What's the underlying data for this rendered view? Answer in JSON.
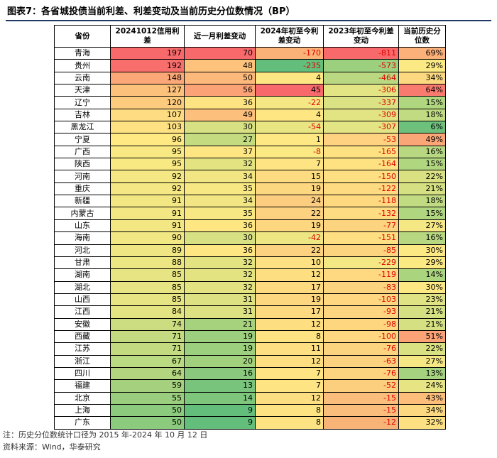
{
  "title": "图表7：各省城投债当前利差、利差变动及当前历史分位数情况（BP）",
  "table": {
    "headers": [
      "省份",
      "20241012信用利差",
      "近一月利差变动",
      "2024年初至今利差变动",
      "2023年初至今利差变动",
      "当前历史分位数"
    ],
    "rows": [
      {
        "province": "青海",
        "spread": "197",
        "m1": "70",
        "ytd2024": "-170",
        "ytd2023": "-811",
        "pct": "69%",
        "colors": [
          "#f8696b",
          "#f8696b",
          "#fbb279",
          "#f8696b",
          "#fcb07a"
        ]
      },
      {
        "province": "贵州",
        "spread": "192",
        "m1": "48",
        "ytd2024": "-235",
        "ytd2023": "-573",
        "pct": "29%",
        "colors": [
          "#f86e6c",
          "#fdc37d",
          "#63be7b",
          "#9cd07e",
          "#fbe983"
        ]
      },
      {
        "province": "云南",
        "spread": "148",
        "m1": "50",
        "ytd2024": "4",
        "ytd2023": "-464",
        "pct": "34%",
        "colors": [
          "#fba777",
          "#fcb97b",
          "#fee783",
          "#b9d881",
          "#fcd880"
        ]
      },
      {
        "province": "天津",
        "spread": "127",
        "m1": "56",
        "ytd2024": "45",
        "ytd2023": "-306",
        "pct": "64%",
        "colors": [
          "#fcc27c",
          "#fba276",
          "#f8696b",
          "#e3e483",
          "#f97a6e"
        ]
      },
      {
        "province": "辽宁",
        "spread": "120",
        "m1": "36",
        "ytd2024": "-22",
        "ytd2023": "-337",
        "pct": "15%",
        "colors": [
          "#fdcb7e",
          "#fee382",
          "#f5e884",
          "#dbe283",
          "#b0d67f"
        ]
      },
      {
        "province": "吉林",
        "spread": "107",
        "m1": "49",
        "ytd2024": "4",
        "ytd2023": "-309",
        "pct": "18%",
        "colors": [
          "#fedc81",
          "#fdbf7c",
          "#fee783",
          "#e2e483",
          "#c0db81"
        ]
      },
      {
        "province": "黑龙江",
        "spread": "103",
        "m1": "30",
        "ytd2024": "-54",
        "ytd2023": "-307",
        "pct": "6%",
        "colors": [
          "#fee182",
          "#d7e082",
          "#e9e583",
          "#e3e483",
          "#6dc17c"
        ]
      },
      {
        "province": "宁夏",
        "spread": "96",
        "m1": "27",
        "ytd2024": "1",
        "ytd2023": "-53",
        "pct": "49%",
        "colors": [
          "#fee983",
          "#c5db80",
          "#fee883",
          "#fed280",
          "#fba677"
        ]
      },
      {
        "province": "广西",
        "spread": "95",
        "m1": "37",
        "ytd2024": "-8",
        "ytd2023": "-165",
        "pct": "16%",
        "colors": [
          "#f9e983",
          "#fee683",
          "#fbe983",
          "#fee282",
          "#b7d880"
        ]
      },
      {
        "province": "陕西",
        "spread": "95",
        "m1": "32",
        "ytd2024": "7",
        "ytd2023": "-164",
        "pct": "15%",
        "colors": [
          "#f9e983",
          "#e3e382",
          "#fee482",
          "#fee282",
          "#b0d67f"
        ]
      },
      {
        "province": "河南",
        "spread": "92",
        "m1": "34",
        "ytd2024": "15",
        "ytd2023": "-150",
        "pct": "22%",
        "colors": [
          "#f5e884",
          "#f1e683",
          "#fddc81",
          "#fedf81",
          "#dae183"
        ]
      },
      {
        "province": "重庆",
        "spread": "92",
        "m1": "35",
        "ytd2024": "19",
        "ytd2023": "-122",
        "pct": "21%",
        "colors": [
          "#f5e884",
          "#f7e883",
          "#fdd680",
          "#feda81",
          "#d5e082"
        ]
      },
      {
        "province": "新疆",
        "spread": "91",
        "m1": "34",
        "ytd2024": "24",
        "ytd2023": "-118",
        "pct": "18%",
        "colors": [
          "#f3e783",
          "#f1e683",
          "#fccd7e",
          "#fed980",
          "#c0db81"
        ]
      },
      {
        "province": "内蒙古",
        "spread": "91",
        "m1": "35",
        "ytd2024": "22",
        "ytd2023": "-132",
        "pct": "15%",
        "colors": [
          "#f3e783",
          "#f7e883",
          "#fcd17f",
          "#fedc81",
          "#b0d67f"
        ]
      },
      {
        "province": "山东",
        "spread": "91",
        "m1": "36",
        "ytd2024": "19",
        "ytd2023": "-77",
        "pct": "27%",
        "colors": [
          "#f3e783",
          "#fee683",
          "#fdd680",
          "#fcd47f",
          "#f5e884"
        ]
      },
      {
        "province": "海南",
        "spread": "90",
        "m1": "30",
        "ytd2024": "-42",
        "ytd2023": "-151",
        "pct": "16%",
        "colors": [
          "#f1e783",
          "#d7e082",
          "#eee683",
          "#fedf81",
          "#b7d880"
        ]
      },
      {
        "province": "河北",
        "spread": "89",
        "m1": "36",
        "ytd2024": "22",
        "ytd2023": "-85",
        "pct": "30%",
        "colors": [
          "#efe683",
          "#fee683",
          "#fcd17f",
          "#fcd47f",
          "#fde983"
        ]
      },
      {
        "province": "甘肃",
        "spread": "88",
        "m1": "32",
        "ytd2024": "10",
        "ytd2023": "-229",
        "pct": "29%",
        "colors": [
          "#ece683",
          "#e3e382",
          "#fde182",
          "#f4e884",
          "#fbe983"
        ]
      },
      {
        "province": "湖南",
        "spread": "85",
        "m1": "32",
        "ytd2024": "12",
        "ytd2023": "-119",
        "pct": "14%",
        "colors": [
          "#e6e483",
          "#e3e382",
          "#fddf81",
          "#fed981",
          "#abd47f"
        ]
      },
      {
        "province": "湖北",
        "spread": "85",
        "m1": "32",
        "ytd2024": "17",
        "ytd2023": "-83",
        "pct": "30%",
        "colors": [
          "#e6e483",
          "#e3e382",
          "#fdd980",
          "#fcd47f",
          "#fde983"
        ]
      },
      {
        "province": "山西",
        "spread": "85",
        "m1": "31",
        "ytd2024": "19",
        "ytd2023": "-103",
        "pct": "23%",
        "colors": [
          "#e6e483",
          "#dde182",
          "#fdd680",
          "#fed780",
          "#e0e383"
        ]
      },
      {
        "province": "江西",
        "spread": "84",
        "m1": "31",
        "ytd2024": "17",
        "ytd2023": "-93",
        "pct": "21%",
        "colors": [
          "#e4e483",
          "#dde182",
          "#fdd980",
          "#fdd580",
          "#d5e082"
        ]
      },
      {
        "province": "安徽",
        "spread": "74",
        "m1": "21",
        "ytd2024": "12",
        "ytd2023": "-98",
        "pct": "21%",
        "colors": [
          "#cbdc81",
          "#a6d27e",
          "#fddf81",
          "#fed680",
          "#d5e082"
        ]
      },
      {
        "province": "西藏",
        "spread": "71",
        "m1": "19",
        "ytd2024": "8",
        "ytd2023": "-100",
        "pct": "51%",
        "colors": [
          "#c4da80",
          "#9ccf7e",
          "#fee382",
          "#fed780",
          "#fba276"
        ]
      },
      {
        "province": "江苏",
        "spread": "71",
        "m1": "19",
        "ytd2024": "11",
        "ytd2023": "-76",
        "pct": "22%",
        "colors": [
          "#c4da80",
          "#9ccf7e",
          "#fee082",
          "#fcd37f",
          "#dae183"
        ]
      },
      {
        "province": "浙江",
        "spread": "67",
        "m1": "20",
        "ytd2024": "12",
        "ytd2023": "-63",
        "pct": "27%",
        "colors": [
          "#badb81",
          "#a2d17e",
          "#fddf81",
          "#fcd17f",
          "#f5e884"
        ]
      },
      {
        "province": "四川",
        "spread": "64",
        "m1": "16",
        "ytd2024": "7",
        "ytd2023": "-76",
        "pct": "13%",
        "colors": [
          "#b3d57f",
          "#8ac97d",
          "#fee482",
          "#fcd37f",
          "#a5d27e"
        ]
      },
      {
        "province": "福建",
        "spread": "59",
        "m1": "13",
        "ytd2024": "7",
        "ytd2023": "-52",
        "pct": "24%",
        "colors": [
          "#a5d17e",
          "#78c47c",
          "#fee482",
          "#fbcf7e",
          "#e6e483"
        ]
      },
      {
        "province": "北京",
        "spread": "55",
        "m1": "14",
        "ytd2024": "12",
        "ytd2023": "-15",
        "pct": "43%",
        "colors": [
          "#9ace7e",
          "#7ec67c",
          "#fddf81",
          "#fbbd7b",
          "#fdbe7b"
        ]
      },
      {
        "province": "上海",
        "spread": "50",
        "m1": "9",
        "ytd2024": "8",
        "ytd2023": "-15",
        "pct": "34%",
        "colors": [
          "#8cca7d",
          "#63be7b",
          "#fee382",
          "#fbbd7b",
          "#fcd880"
        ]
      },
      {
        "province": "广东",
        "spread": "50",
        "m1": "9",
        "ytd2024": "8",
        "ytd2023": "-12",
        "pct": "32%",
        "colors": [
          "#8cca7d",
          "#63be7b",
          "#fee382",
          "#f8b377",
          "#fde082"
        ]
      }
    ]
  },
  "footnote": "注：历史分位数统计口径为 2015 年-2024 年 10 月 12 日",
  "source": "资料来源：Wind，华泰研究"
}
